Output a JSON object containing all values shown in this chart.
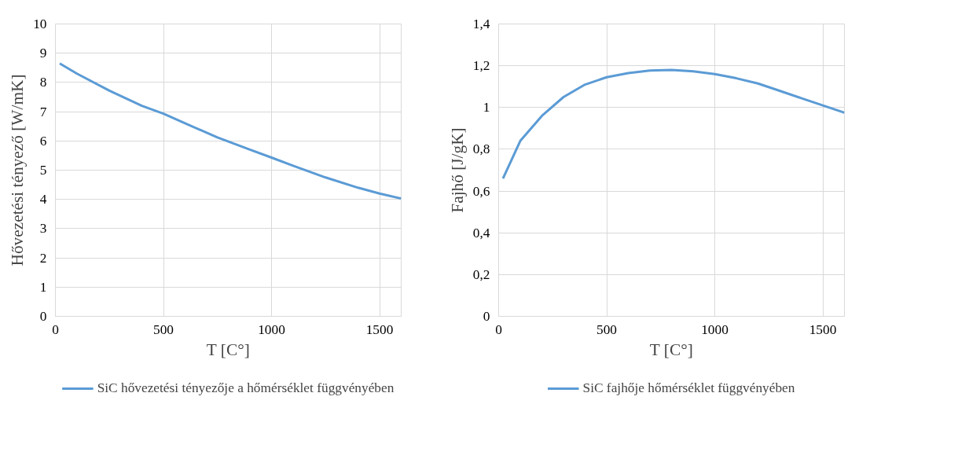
{
  "chart_data": [
    {
      "type": "line",
      "xlabel": "T [C°]",
      "ylabel": "Hővezetési tényező [W/mK]",
      "x": [
        20,
        100,
        250,
        400,
        500,
        600,
        750,
        900,
        1000,
        1100,
        1250,
        1400,
        1500,
        1600
      ],
      "series": [
        {
          "name": "SiC hővezetési tényezője a hőmérséklet függvényében",
          "color": "#5b9bd5",
          "values": [
            8.65,
            8.3,
            7.72,
            7.2,
            6.93,
            6.6,
            6.12,
            5.7,
            5.43,
            5.15,
            4.75,
            4.4,
            4.2,
            4.03
          ]
        }
      ],
      "xlim": [
        0,
        1600
      ],
      "xticks": [
        0,
        500,
        1000,
        1500
      ],
      "ylim": [
        0,
        10
      ],
      "yticks": [
        0,
        1,
        2,
        3,
        4,
        5,
        6,
        7,
        8,
        9,
        10
      ],
      "grid": true,
      "legend": "bottom",
      "marker": "none",
      "line_style": "solid"
    },
    {
      "type": "line",
      "xlabel": "T [C°]",
      "ylabel": "Fajhő [J/gK]",
      "x": [
        20,
        100,
        200,
        300,
        400,
        500,
        600,
        700,
        800,
        900,
        1000,
        1100,
        1200,
        1300,
        1400,
        1500,
        1600
      ],
      "series": [
        {
          "name": "SiC fajhője hőmérséklet függvényében",
          "color": "#5b9bd5",
          "values": [
            0.66,
            0.84,
            0.96,
            1.05,
            1.11,
            1.145,
            1.165,
            1.177,
            1.18,
            1.173,
            1.16,
            1.14,
            1.115,
            1.08,
            1.045,
            1.01,
            0.975
          ]
        }
      ],
      "xlim": [
        0,
        1600
      ],
      "xticks": [
        0,
        500,
        1000,
        1500
      ],
      "ylim": [
        0,
        1.4
      ],
      "yticks": [
        0,
        {
          "value": 0.2,
          "label": "0,2"
        },
        {
          "value": 0.4,
          "label": "0,4"
        },
        {
          "value": 0.6,
          "label": "0,6"
        },
        {
          "value": 0.8,
          "label": "0,8"
        },
        1,
        {
          "value": 1.2,
          "label": "1,2"
        },
        {
          "value": 1.4,
          "label": "1,4"
        }
      ],
      "grid": true,
      "legend": "bottom",
      "marker": "none",
      "line_style": "solid"
    }
  ]
}
